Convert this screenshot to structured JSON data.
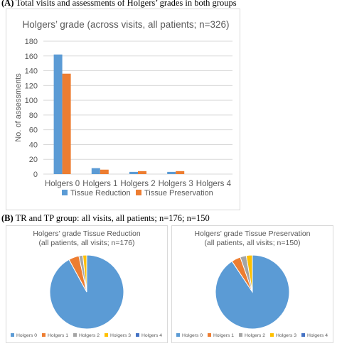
{
  "section_a": {
    "label": "(A)",
    "caption": "Total visits and assessments of Holgers’ grades in both groups"
  },
  "section_b": {
    "label": "(B)",
    "caption": "TR and TP group: all visits, all patients; n=176; n=150"
  },
  "colors": {
    "holgers_0": "#5b9bd5",
    "holgers_1": "#ed7d31",
    "holgers_2": "#a5a5a5",
    "holgers_3": "#ffc000",
    "holgers_4": "#4472c4",
    "gridline": "#d9d9d9",
    "axis_text": "#595959"
  },
  "chart_data": [
    {
      "type": "bar",
      "title": "Holgers’ grade (across visits, all patients; n=326)",
      "xlabel": "",
      "ylabel": "No. of assessments",
      "categories": [
        "Holgers 0",
        "Holgers 1",
        "Holgers 2",
        "Holgers 3",
        "Holgers 4"
      ],
      "series": [
        {
          "name": "Tissue Reduction",
          "color": "#5b9bd5",
          "values": [
            162,
            8,
            3,
            3,
            0
          ]
        },
        {
          "name": "Tissue Preservation",
          "color": "#ed7d31",
          "values": [
            136,
            6,
            4,
            4,
            0
          ]
        }
      ],
      "ylim": [
        0,
        180
      ],
      "yticks": [
        0,
        20,
        40,
        60,
        80,
        100,
        120,
        140,
        160,
        180
      ],
      "grid": true,
      "legend": "bottom"
    },
    {
      "type": "pie",
      "title": "Holgers’ grade Tissue Reduction",
      "subtitle": "(all patients, all visits; n=176)",
      "labels": [
        "Holgers 0",
        "Holgers 1",
        "Holgers 2",
        "Holgers 3",
        "Holgers 4"
      ],
      "values": [
        162,
        8,
        3,
        3,
        0
      ],
      "legend": "bottom"
    },
    {
      "type": "pie",
      "title": "Holgers’ grade Tissue Preservation",
      "subtitle": "(all patients, all visits; n=150)",
      "labels": [
        "Holgers 0",
        "Holgers 1",
        "Holgers 2",
        "Holgers 3",
        "Holgers 4"
      ],
      "values": [
        136,
        6,
        4,
        4,
        0
      ],
      "legend": "bottom"
    }
  ]
}
